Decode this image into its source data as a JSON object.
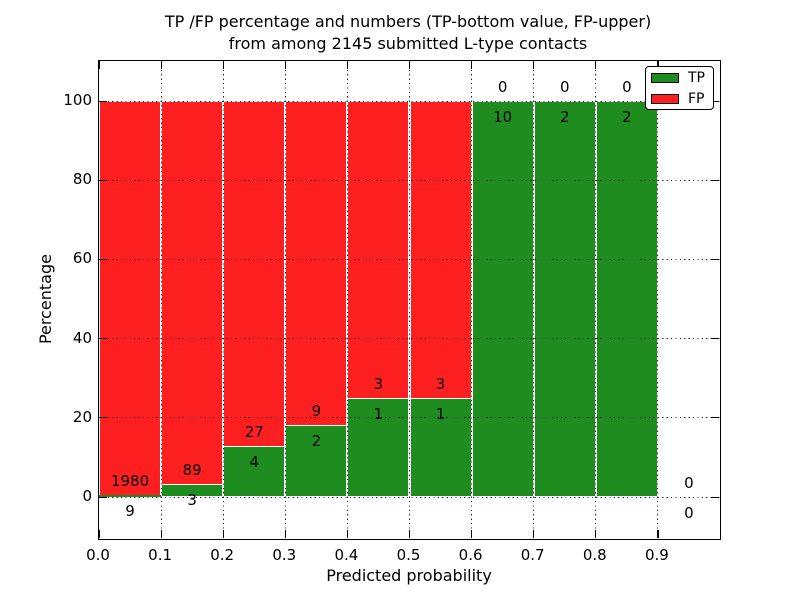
{
  "chart_data": {
    "type": "bar",
    "variant": "stacked-percentage-histogram",
    "title_line1": "TP /FP percentage and numbers (TP-bottom value, FP-upper)",
    "title_line2": "from among 2145 submitted L-type contacts",
    "xlabel": "Predicted probability",
    "ylabel": "Percentage",
    "xlim": [
      0.0,
      1.0
    ],
    "ylim": [
      0,
      100
    ],
    "x_tick_values": [
      0.0,
      0.1,
      0.2,
      0.3,
      0.4,
      0.5,
      0.6,
      0.7,
      0.8,
      0.9
    ],
    "x_tick_labels": [
      "0.0",
      "0.1",
      "0.2",
      "0.3",
      "0.4",
      "0.5",
      "0.6",
      "0.7",
      "0.8",
      "0.9"
    ],
    "y_tick_values": [
      0,
      20,
      40,
      60,
      80,
      100
    ],
    "y_tick_labels": [
      "0",
      "20",
      "40",
      "60",
      "80",
      "100"
    ],
    "grid": "dotted",
    "legend_position": "upper-right",
    "series_legend": [
      {
        "name": "TP",
        "color": "#1e8c1e"
      },
      {
        "name": "FP",
        "color": "#fe2020"
      }
    ],
    "bins": [
      {
        "x_range": [
          0.0,
          0.1
        ],
        "tp": 9,
        "fp": 1980
      },
      {
        "x_range": [
          0.1,
          0.2
        ],
        "tp": 3,
        "fp": 89
      },
      {
        "x_range": [
          0.2,
          0.3
        ],
        "tp": 4,
        "fp": 27
      },
      {
        "x_range": [
          0.3,
          0.4
        ],
        "tp": 2,
        "fp": 9
      },
      {
        "x_range": [
          0.4,
          0.5
        ],
        "tp": 1,
        "fp": 3
      },
      {
        "x_range": [
          0.5,
          0.6
        ],
        "tp": 1,
        "fp": 3
      },
      {
        "x_range": [
          0.6,
          0.7
        ],
        "tp": 10,
        "fp": 0
      },
      {
        "x_range": [
          0.7,
          0.8
        ],
        "tp": 2,
        "fp": 0
      },
      {
        "x_range": [
          0.8,
          0.9
        ],
        "tp": 2,
        "fp": 0
      },
      {
        "x_range": [
          0.9,
          1.0
        ],
        "tp": 0,
        "fp": 0
      }
    ]
  }
}
